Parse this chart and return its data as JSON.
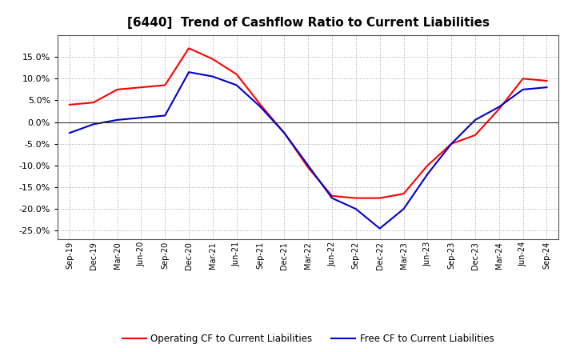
{
  "title": "[6440]  Trend of Cashflow Ratio to Current Liabilities",
  "x_labels": [
    "Sep-19",
    "Dec-19",
    "Mar-20",
    "Jun-20",
    "Sep-20",
    "Dec-20",
    "Mar-21",
    "Jun-21",
    "Sep-21",
    "Dec-21",
    "Mar-22",
    "Jun-22",
    "Sep-22",
    "Dec-22",
    "Mar-23",
    "Jun-23",
    "Sep-23",
    "Dec-23",
    "Mar-24",
    "Jun-24",
    "Sep-24"
  ],
  "operating_cf_full": [
    4.0,
    4.5,
    7.5,
    8.0,
    8.5,
    17.0,
    14.5,
    11.0,
    4.0,
    -2.5,
    -10.5,
    -17.0,
    -17.5,
    -17.5,
    -16.5,
    -10.0,
    -5.0,
    -3.0,
    3.0,
    10.0,
    9.5
  ],
  "free_cf_full": [
    -2.5,
    -0.5,
    0.5,
    1.0,
    1.5,
    11.5,
    10.5,
    8.5,
    3.5,
    -2.5,
    -10.0,
    -17.5,
    -20.0,
    -24.5,
    -20.0,
    -12.0,
    -5.0,
    0.5,
    3.5,
    7.5,
    8.0
  ],
  "ylim": [
    -27,
    20
  ],
  "yticks": [
    -25.0,
    -20.0,
    -15.0,
    -10.0,
    -5.0,
    0.0,
    5.0,
    10.0,
    15.0
  ],
  "operating_color": "#FF0000",
  "free_color": "#0000CC",
  "background_color": "#FFFFFF",
  "plot_bg_color": "#FFFFFF",
  "grid_color": "#999999",
  "title_fontsize": 11,
  "legend_labels": [
    "Operating CF to Current Liabilities",
    "Free CF to Current Liabilities"
  ]
}
